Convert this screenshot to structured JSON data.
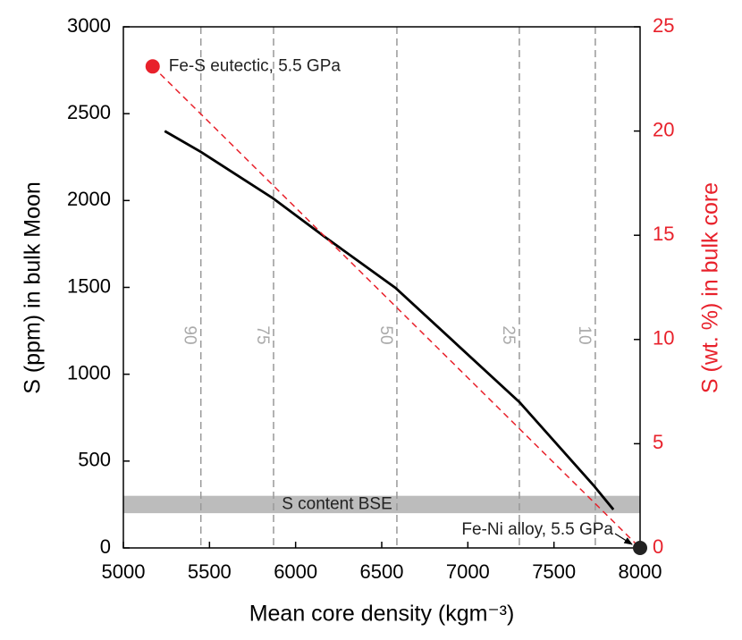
{
  "chart_data": {
    "type": "line",
    "xlabel": "Mean core density (kgm⁻³)",
    "ylabel": "S (ppm) in bulk Moon",
    "y2label": "S (wt. %) in bulk core",
    "xlim": [
      5000,
      8000
    ],
    "xticks": [
      5000,
      5500,
      6000,
      6500,
      7000,
      7500,
      8000
    ],
    "ylim": [
      0,
      3000
    ],
    "yticks": [
      0,
      500,
      1000,
      1500,
      2000,
      2500,
      3000
    ],
    "y2lim": [
      0,
      25
    ],
    "y2ticks": [
      0,
      5,
      10,
      15,
      20,
      25
    ],
    "y2color": "#e8212b",
    "series": [
      {
        "color": "#000000",
        "x": [
          5240,
          5450,
          5870,
          6170,
          6580,
          7300,
          7730,
          7845
        ],
        "values": [
          2400,
          2280,
          2012,
          1790,
          1497,
          839,
          360,
          221
        ]
      },
      {
        "color": "#e8212b",
        "dashed": true,
        "axis": "y2",
        "x": [
          5170,
          8000
        ],
        "values": [
          23.1,
          0
        ]
      }
    ],
    "points": [
      {
        "label": "Fe-S eutectic, 5.5 GPa",
        "x": 5170,
        "value": 23.1,
        "axis": "y2",
        "color": "#e8212b"
      },
      {
        "label": "Fe-Ni alloy, 5.5 GPa",
        "x": 8000,
        "value": 0,
        "color": "#222222"
      }
    ],
    "vlines": [
      {
        "x": 5450,
        "label": 90
      },
      {
        "x": 5872,
        "label": 75
      },
      {
        "x": 6588,
        "label": 50
      },
      {
        "x": 7299,
        "label": 25
      },
      {
        "x": 7740,
        "label": 10
      }
    ],
    "band": {
      "ymin": 200,
      "ymax": 300,
      "label": "S content BSE",
      "color": "#bcbcbc"
    }
  }
}
